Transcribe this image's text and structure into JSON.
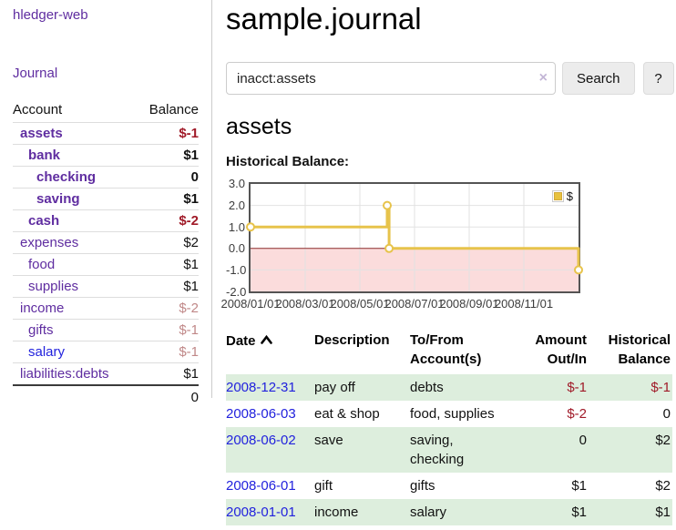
{
  "brand": "hledger-web",
  "sidebar": {
    "journal_link": "Journal",
    "account_header": "Account",
    "balance_header": "Balance",
    "rows": [
      {
        "name": "assets",
        "balance": "$-1"
      },
      {
        "name": "bank",
        "balance": "$1"
      },
      {
        "name": "checking",
        "balance": "0"
      },
      {
        "name": "saving",
        "balance": "$1"
      },
      {
        "name": "cash",
        "balance": "$-2"
      },
      {
        "name": "expenses",
        "balance": "$2"
      },
      {
        "name": "food",
        "balance": "$1"
      },
      {
        "name": "supplies",
        "balance": "$1"
      },
      {
        "name": "income",
        "balance": "$-2"
      },
      {
        "name": "gifts",
        "balance": "$-1"
      },
      {
        "name": "salary",
        "balance": "$-1"
      },
      {
        "name": "liabilities:debts",
        "balance": "$1"
      }
    ],
    "total": "0"
  },
  "header": {
    "title": "sample.journal"
  },
  "search": {
    "value": "inacct:assets",
    "clear_icon": "×",
    "search_button": "Search",
    "help_button": "?"
  },
  "account": {
    "heading": "assets",
    "chart_title": "Historical Balance:"
  },
  "chart_data": {
    "type": "line",
    "style": "step-with-markers",
    "title": "Historical Balance of assets",
    "legend": [
      {
        "label": "$",
        "color": "#e8c23f"
      }
    ],
    "legend_position": "top-right",
    "grid": true,
    "ylim": [
      -2,
      3
    ],
    "yticks": [
      "3.0",
      "2.0",
      "1.0",
      "0.0",
      "-1.0",
      "-2.0"
    ],
    "xticks": [
      "2008/01/01",
      "2008/03/01",
      "2008/05/01",
      "2008/07/01",
      "2008/09/01",
      "2008/11/01"
    ],
    "x_unit": "months since 2008-01-01",
    "x_range": [
      0,
      12
    ],
    "negative_region_color": "#fbdcdc",
    "zero_line_color": "#8b2a2a",
    "line_color": "#e7c34b",
    "series": [
      {
        "name": "$",
        "points": [
          {
            "date": "2008-01-01",
            "x": 0,
            "y": 1
          },
          {
            "date": "2008-06-01",
            "x": 5,
            "y": 2
          },
          {
            "date": "2008-06-03",
            "x": 5.07,
            "y": 0
          },
          {
            "date": "2008-12-31",
            "x": 12,
            "y": -1
          }
        ]
      }
    ]
  },
  "register": {
    "headers": {
      "date": "Date",
      "description": "Description",
      "account": "To/From Account(s)",
      "amount": "Amount Out/In",
      "balance": "Historical Balance"
    },
    "rows": [
      {
        "date": "2008-12-31",
        "description": "pay off",
        "account": "debts",
        "amount": "$-1",
        "balance": "$-1"
      },
      {
        "date": "2008-06-03",
        "description": "eat & shop",
        "account": "food, supplies",
        "amount": "$-2",
        "balance": "0"
      },
      {
        "date": "2008-06-02",
        "description": "save",
        "account": "saving, checking",
        "amount": "0",
        "balance": "$2"
      },
      {
        "date": "2008-06-01",
        "description": "gift",
        "account": "gifts",
        "amount": "$1",
        "balance": "$2"
      },
      {
        "date": "2008-01-01",
        "description": "income",
        "account": "salary",
        "amount": "$1",
        "balance": "$1"
      }
    ]
  }
}
